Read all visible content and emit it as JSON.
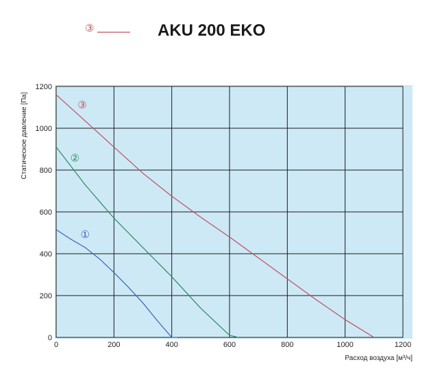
{
  "chart_data": {
    "type": "line",
    "title": "AKU 200 EKO",
    "legend_marker": "③",
    "xlabel": "Расход воздуха [м³/ч]",
    "ylabel": "Статическое давление [Па]",
    "xlim": [
      0,
      1200
    ],
    "ylim": [
      0,
      1200
    ],
    "xticks": [
      "0",
      "200",
      "400",
      "600",
      "800",
      "1000",
      "1200"
    ],
    "yticks": [
      "0",
      "200",
      "400",
      "600",
      "800",
      "1000",
      "1200"
    ],
    "grid": true,
    "background_color": "#cde9f6",
    "series": [
      {
        "name": "①",
        "color": "#3a63b6",
        "x": [
          0,
          50,
          100,
          150,
          200,
          250,
          300,
          350,
          400,
          420
        ],
        "y": [
          515,
          470,
          430,
          375,
          310,
          240,
          165,
          80,
          0,
          0
        ]
      },
      {
        "name": "②",
        "color": "#2e8b57",
        "x": [
          0,
          50,
          100,
          150,
          200,
          300,
          400,
          500,
          600,
          630
        ],
        "y": [
          910,
          820,
          730,
          650,
          570,
          430,
          290,
          140,
          10,
          0
        ]
      },
      {
        "name": "③",
        "color": "#c0505a",
        "x": [
          0,
          100,
          200,
          300,
          400,
          500,
          600,
          700,
          800,
          900,
          1000,
          1100
        ],
        "y": [
          1160,
          1035,
          910,
          785,
          675,
          575,
          480,
          380,
          280,
          180,
          85,
          0
        ]
      }
    ],
    "series_label_positions": [
      {
        "x": 100,
        "y": 490
      },
      {
        "x": 65,
        "y": 855
      },
      {
        "x": 90,
        "y": 1110
      }
    ]
  }
}
